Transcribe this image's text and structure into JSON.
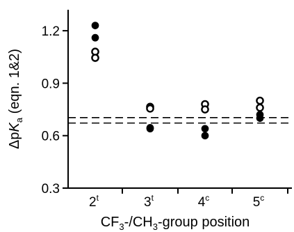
{
  "chart_data": {
    "type": "scatter",
    "title": "",
    "xlabel": "CF3-/CH3-group position",
    "xlabel_parts": {
      "a": "CF",
      "a_sub": "3",
      "b": "-/CH",
      "b_sub": "3",
      "c": "-group position"
    },
    "ylabel": "ΔpKa (eqn. 1&2)",
    "ylabel_parts": {
      "delta": "Δp",
      "k": "K",
      "k_sub": "a",
      "rest": " (eqn. 1&2)"
    },
    "categories": [
      "2t",
      "3t",
      "4c",
      "5c"
    ],
    "category_labels": [
      {
        "base": "2",
        "sup": "t"
      },
      {
        "base": "3",
        "sup": "t"
      },
      {
        "base": "4",
        "sup": "c"
      },
      {
        "base": "5",
        "sup": "c"
      }
    ],
    "ylim": [
      0.3,
      1.32
    ],
    "yticks": [
      0.3,
      0.6,
      0.9,
      1.2
    ],
    "ytick_labels": [
      "0.3",
      "0.6",
      "0.9",
      "1.2"
    ],
    "grid": false,
    "series": [
      {
        "marker": "filled-circle",
        "values": [
          [
            1.23,
            1.16
          ],
          [
            0.645,
            0.64
          ],
          [
            0.64,
            0.6
          ],
          [
            0.72,
            0.7
          ]
        ]
      },
      {
        "marker": "open-circle",
        "values": [
          [
            1.08,
            1.045
          ],
          [
            0.765,
            0.755
          ],
          [
            0.78,
            0.75
          ],
          [
            0.8,
            0.76
          ]
        ]
      }
    ],
    "reference_lines": [
      0.703,
      0.672
    ]
  }
}
